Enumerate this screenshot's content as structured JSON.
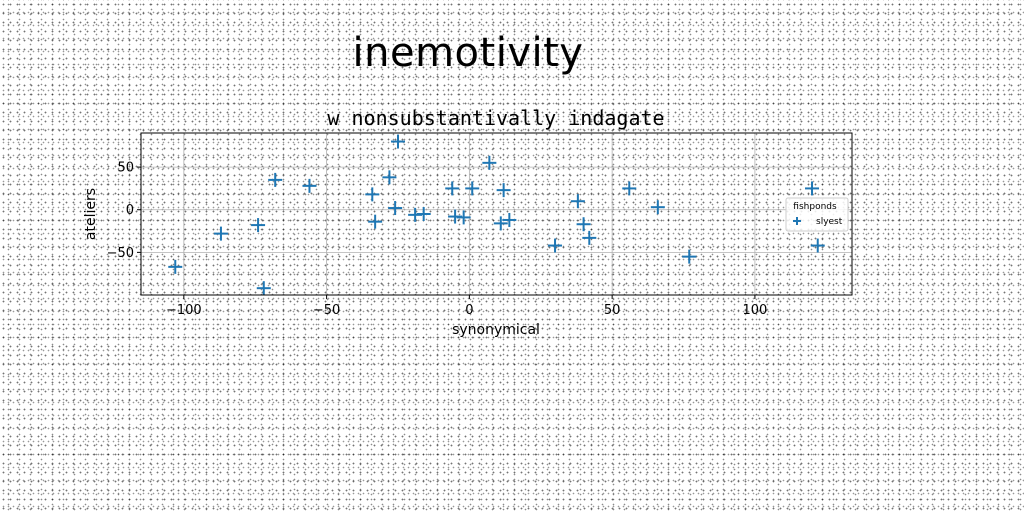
{
  "suptitle": "inemotivity",
  "chart_data": {
    "type": "scatter",
    "title": "w nonsubstantivally indagate",
    "xlabel": "synonymical",
    "ylabel": "ateliers",
    "xlim": [
      -115,
      134
    ],
    "ylim": [
      -100,
      90
    ],
    "xticks": [
      -100,
      -50,
      0,
      50,
      100
    ],
    "xtick_labels": [
      "−100",
      "−50",
      "0",
      "50",
      "100"
    ],
    "yticks": [
      -50,
      0,
      50
    ],
    "ytick_labels": [
      "−50",
      "0",
      "50"
    ],
    "grid": true,
    "legend": {
      "title": "fishponds",
      "placement": "right",
      "entries": [
        "slyest"
      ]
    },
    "series": [
      {
        "name": "slyest",
        "marker": "plus",
        "color": "#1f77b4",
        "x": [
          -103,
          -87,
          -74,
          -72,
          -68,
          -56,
          -34,
          -33,
          -28,
          -26,
          -25,
          -19,
          -16,
          -6,
          -5,
          -2,
          1,
          7,
          11,
          12,
          14,
          30,
          38,
          40,
          42,
          56,
          66,
          77,
          120,
          122
        ],
        "y": [
          -67,
          -28,
          -18,
          -92,
          35,
          28,
          18,
          -14,
          38,
          2,
          80,
          -6,
          -5,
          25,
          -8,
          -9,
          25,
          55,
          -16,
          23,
          -12,
          -42,
          10,
          -17,
          -33,
          25,
          3,
          -55,
          25,
          -42
        ]
      }
    ]
  }
}
